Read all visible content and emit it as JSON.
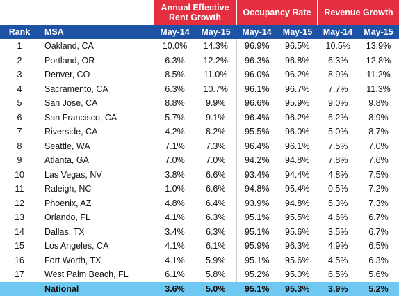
{
  "headers": {
    "rank": "Rank",
    "msa": "MSA",
    "groups": {
      "rent": "Annual Effective Rent Growth",
      "occupancy": "Occupancy Rate",
      "revenue": "Revenue Growth"
    },
    "period1": "May-14",
    "period2": "May-15"
  },
  "rows": [
    {
      "rank": "1",
      "msa": "Oakland, CA",
      "rent_p1": "10.0%",
      "rent_p2": "14.3%",
      "occ_p1": "96.9%",
      "occ_p2": "96.5%",
      "rev_p1": "10.5%",
      "rev_p2": "13.9%"
    },
    {
      "rank": "2",
      "msa": "Portland, OR",
      "rent_p1": "6.3%",
      "rent_p2": "12.2%",
      "occ_p1": "96.3%",
      "occ_p2": "96.8%",
      "rev_p1": "6.3%",
      "rev_p2": "12.8%"
    },
    {
      "rank": "3",
      "msa": "Denver, CO",
      "rent_p1": "8.5%",
      "rent_p2": "11.0%",
      "occ_p1": "96.0%",
      "occ_p2": "96.2%",
      "rev_p1": "8.9%",
      "rev_p2": "11.2%"
    },
    {
      "rank": "4",
      "msa": "Sacramento, CA",
      "rent_p1": "6.3%",
      "rent_p2": "10.7%",
      "occ_p1": "96.1%",
      "occ_p2": "96.7%",
      "rev_p1": "7.7%",
      "rev_p2": "11.3%"
    },
    {
      "rank": "5",
      "msa": "San Jose, CA",
      "rent_p1": "8.8%",
      "rent_p2": "9.9%",
      "occ_p1": "96.6%",
      "occ_p2": "95.9%",
      "rev_p1": "9.0%",
      "rev_p2": "9.8%"
    },
    {
      "rank": "6",
      "msa": "San Francisco, CA",
      "rent_p1": "5.7%",
      "rent_p2": "9.1%",
      "occ_p1": "96.4%",
      "occ_p2": "96.2%",
      "rev_p1": "6.2%",
      "rev_p2": "8.9%"
    },
    {
      "rank": "7",
      "msa": "Riverside, CA",
      "rent_p1": "4.2%",
      "rent_p2": "8.2%",
      "occ_p1": "95.5%",
      "occ_p2": "96.0%",
      "rev_p1": "5.0%",
      "rev_p2": "8.7%"
    },
    {
      "rank": "8",
      "msa": "Seattle, WA",
      "rent_p1": "7.1%",
      "rent_p2": "7.3%",
      "occ_p1": "96.4%",
      "occ_p2": "96.1%",
      "rev_p1": "7.5%",
      "rev_p2": "7.0%"
    },
    {
      "rank": "9",
      "msa": "Atlanta, GA",
      "rent_p1": "7.0%",
      "rent_p2": "7.0%",
      "occ_p1": "94.2%",
      "occ_p2": "94.8%",
      "rev_p1": "7.8%",
      "rev_p2": "7.6%"
    },
    {
      "rank": "10",
      "msa": "Las Vegas, NV",
      "rent_p1": "3.8%",
      "rent_p2": "6.6%",
      "occ_p1": "93.4%",
      "occ_p2": "94.4%",
      "rev_p1": "4.8%",
      "rev_p2": "7.5%"
    },
    {
      "rank": "11",
      "msa": "Raleigh, NC",
      "rent_p1": "1.0%",
      "rent_p2": "6.6%",
      "occ_p1": "94.8%",
      "occ_p2": "95.4%",
      "rev_p1": "0.5%",
      "rev_p2": "7.2%"
    },
    {
      "rank": "12",
      "msa": "Phoenix, AZ",
      "rent_p1": "4.8%",
      "rent_p2": "6.4%",
      "occ_p1": "93.9%",
      "occ_p2": "94.8%",
      "rev_p1": "5.3%",
      "rev_p2": "7.3%"
    },
    {
      "rank": "13",
      "msa": "Orlando, FL",
      "rent_p1": "4.1%",
      "rent_p2": "6.3%",
      "occ_p1": "95.1%",
      "occ_p2": "95.5%",
      "rev_p1": "4.6%",
      "rev_p2": "6.7%"
    },
    {
      "rank": "14",
      "msa": "Dallas, TX",
      "rent_p1": "3.4%",
      "rent_p2": "6.3%",
      "occ_p1": "95.1%",
      "occ_p2": "95.6%",
      "rev_p1": "3.5%",
      "rev_p2": "6.7%"
    },
    {
      "rank": "15",
      "msa": "Los Angeles, CA",
      "rent_p1": "4.1%",
      "rent_p2": "6.1%",
      "occ_p1": "95.9%",
      "occ_p2": "96.3%",
      "rev_p1": "4.9%",
      "rev_p2": "6.5%"
    },
    {
      "rank": "16",
      "msa": "Fort Worth, TX",
      "rent_p1": "4.1%",
      "rent_p2": "5.9%",
      "occ_p1": "95.1%",
      "occ_p2": "95.6%",
      "rev_p1": "4.5%",
      "rev_p2": "6.3%"
    },
    {
      "rank": "17",
      "msa": "West Palm Beach, FL",
      "rent_p1": "6.1%",
      "rent_p2": "5.8%",
      "occ_p1": "95.2%",
      "occ_p2": "95.0%",
      "rev_p1": "6.5%",
      "rev_p2": "5.6%"
    }
  ],
  "national": {
    "msa": "National",
    "rent_p1": "3.6%",
    "rent_p2": "5.0%",
    "occ_p1": "95.1%",
    "occ_p2": "95.3%",
    "rev_p1": "3.9%",
    "rev_p2": "5.2%"
  },
  "colors": {
    "group_header": "#e52f40",
    "sub_header": "#1e52a5",
    "national_row": "#6fc8f2"
  }
}
